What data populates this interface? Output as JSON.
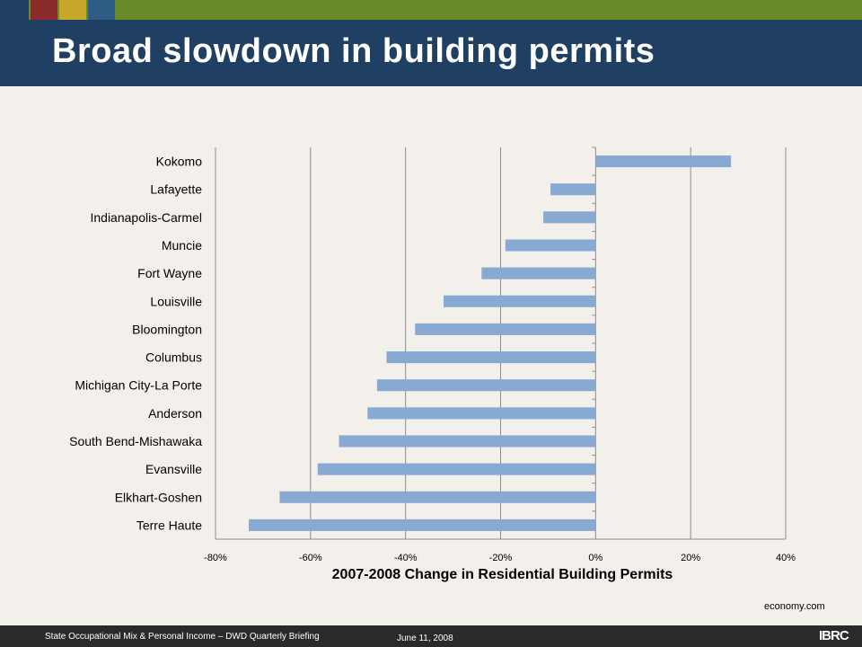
{
  "slide": {
    "title": "Broad slowdown in building permits",
    "source": "economy.com",
    "footer_text": "State Occupational Mix & Personal Income – DWD Quarterly Briefing",
    "footer_date": "June 11, 2008",
    "logo_text": "IBRC"
  },
  "colors": {
    "topbar": "#6b8a2a",
    "header": "#1f3f63",
    "background": "#f3f0eb",
    "bar": "#88a9d1",
    "footer": "#2a2a2a",
    "accent_squares": [
      "#1f3f63",
      "#8b2a2a",
      "#c7a82a",
      "#2f5d86"
    ]
  },
  "chart_data": {
    "type": "bar",
    "orientation": "horizontal",
    "title": "",
    "xlabel": "2007-2008 Change in Residential Building Permits",
    "ylabel": "",
    "xlim": [
      -80,
      40
    ],
    "x_ticks": [
      "-80%",
      "-60%",
      "-40%",
      "-20%",
      "0%",
      "20%",
      "40%"
    ],
    "x_tick_values": [
      -80,
      -60,
      -40,
      -20,
      0,
      20,
      40
    ],
    "grid": true,
    "legend": "none",
    "categories": [
      "Kokomo",
      "Lafayette",
      "Indianapolis-Carmel",
      "Muncie",
      "Fort Wayne",
      "Louisville",
      "Bloomington",
      "Columbus",
      "Michigan City-La Porte",
      "Anderson",
      "South Bend-Mishawaka",
      "Evansville",
      "Elkhart-Goshen",
      "Terre Haute"
    ],
    "values": [
      28.5,
      -9.5,
      -11,
      -19,
      -24,
      -32,
      -38,
      -44,
      -46,
      -48,
      -54,
      -58.5,
      -66.5,
      -73
    ]
  }
}
